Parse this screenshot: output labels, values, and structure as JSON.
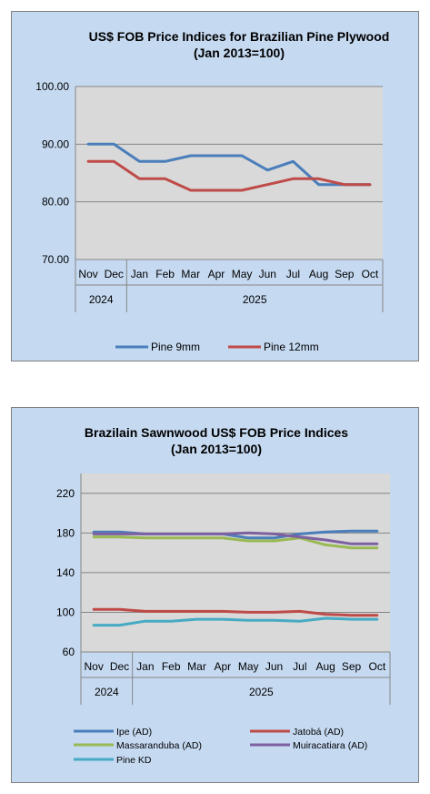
{
  "chart_data": [
    {
      "type": "line",
      "title": "US$ FOB Price Indices for Brazilian  Pine Plywood",
      "subtitle": "(Jan 2013=100)",
      "categories": [
        "Nov",
        "Dec",
        "Jan",
        "Feb",
        "Mar",
        "Apr",
        "May",
        "Jun",
        "Jul",
        "Aug",
        "Sep",
        "Oct"
      ],
      "year_groups": [
        {
          "label": "2024",
          "count": 2
        },
        {
          "label": "2025",
          "count": 10
        }
      ],
      "ylim": [
        70,
        100
      ],
      "yticks": [
        "70.00",
        "80.00",
        "90.00",
        "100.00"
      ],
      "grid": true,
      "legend_position": "bottom",
      "series": [
        {
          "name": "Pine 9mm",
          "color": "#4a7ebb",
          "values": [
            90,
            90,
            87,
            87,
            88,
            88,
            88,
            85.5,
            87,
            83,
            83,
            83
          ]
        },
        {
          "name": "Pine 12mm",
          "color": "#be4b48",
          "values": [
            87,
            87,
            84,
            84,
            82,
            82,
            82,
            83,
            84,
            84,
            83,
            83
          ]
        }
      ]
    },
    {
      "type": "line",
      "title": "Brazilain Sawnwood US$ FOB Price Indices",
      "subtitle": "(Jan 2013=100)",
      "categories": [
        "Nov",
        "Dec",
        "Jan",
        "Feb",
        "Mar",
        "Apr",
        "May",
        "Jun",
        "Jul",
        "Aug",
        "Sep",
        "Oct"
      ],
      "year_groups": [
        {
          "label": "2024",
          "count": 2
        },
        {
          "label": "2025",
          "count": 10
        }
      ],
      "ylim": [
        60,
        240
      ],
      "yticks": [
        "60",
        "100",
        "140",
        "180",
        "220"
      ],
      "grid": true,
      "legend_position": "bottom",
      "series": [
        {
          "name": "Ipe (AD)",
          "color": "#4a7ebb",
          "values": [
            181,
            181,
            179,
            179,
            179,
            179,
            175,
            175,
            179,
            181,
            182,
            182
          ]
        },
        {
          "name": "Jatobá (AD)",
          "color": "#be4b48",
          "values": [
            103,
            103,
            101,
            101,
            101,
            101,
            100,
            100,
            101,
            98,
            97,
            97
          ]
        },
        {
          "name": "Massaranduba (AD)",
          "color": "#98b954",
          "values": [
            176,
            176,
            175,
            175,
            175,
            175,
            172,
            172,
            175,
            168,
            165,
            165
          ]
        },
        {
          "name": "Muiracatiara (AD)",
          "color": "#7d60a0",
          "values": [
            179,
            179,
            179,
            179,
            179,
            179,
            180,
            179,
            176,
            173,
            169,
            169
          ]
        },
        {
          "name": "Pine KD",
          "color": "#46aac4",
          "values": [
            87,
            87,
            91,
            91,
            93,
            93,
            92,
            92,
            91,
            94,
            93,
            93
          ]
        }
      ]
    }
  ]
}
